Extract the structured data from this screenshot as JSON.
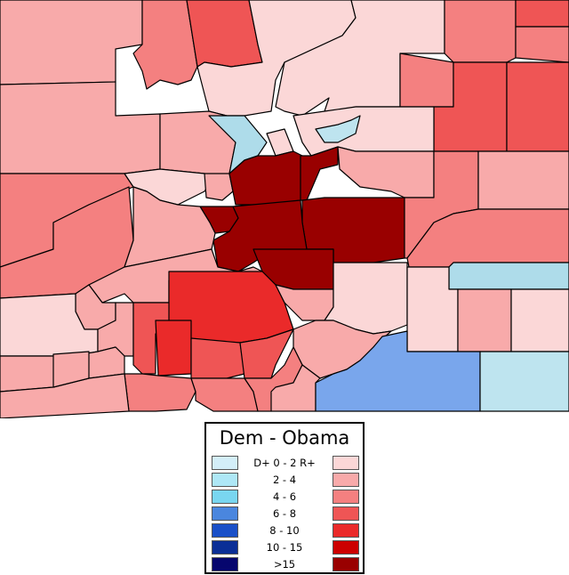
{
  "legend": {
    "title": "Dem - Obama",
    "dem_label": "D+",
    "rep_label": "R+",
    "rows": [
      {
        "range": "0 - 2",
        "dem_color": "#d3eef8",
        "rep_color": "#fbd7d7"
      },
      {
        "range": "2 - 4",
        "dem_color": "#aee7f6",
        "rep_color": "#f8aaaa"
      },
      {
        "range": "4 - 6",
        "dem_color": "#79d6f0",
        "rep_color": "#f48080"
      },
      {
        "range": "6 - 8",
        "dem_color": "#4a86de",
        "rep_color": "#ef5555"
      },
      {
        "range": "8 - 10",
        "dem_color": "#1a50c8",
        "rep_color": "#ea2a2a"
      },
      {
        "range": "10 - 15",
        "dem_color": "#0b2e96",
        "rep_color": "#cc0000"
      },
      {
        "range": ">15",
        "dem_color": "#06066e",
        "rep_color": "#990000"
      }
    ]
  },
  "colors": {
    "r1": "#fbd7d7",
    "r2": "#f8aaaa",
    "r3": "#f48080",
    "r4": "#ef5555",
    "r5": "#ea2a2a",
    "r6": "#cc0000",
    "r7": "#990000",
    "d1": "#bee4ef",
    "d2": "#aedcea",
    "d4": "#79a6ec"
  }
}
